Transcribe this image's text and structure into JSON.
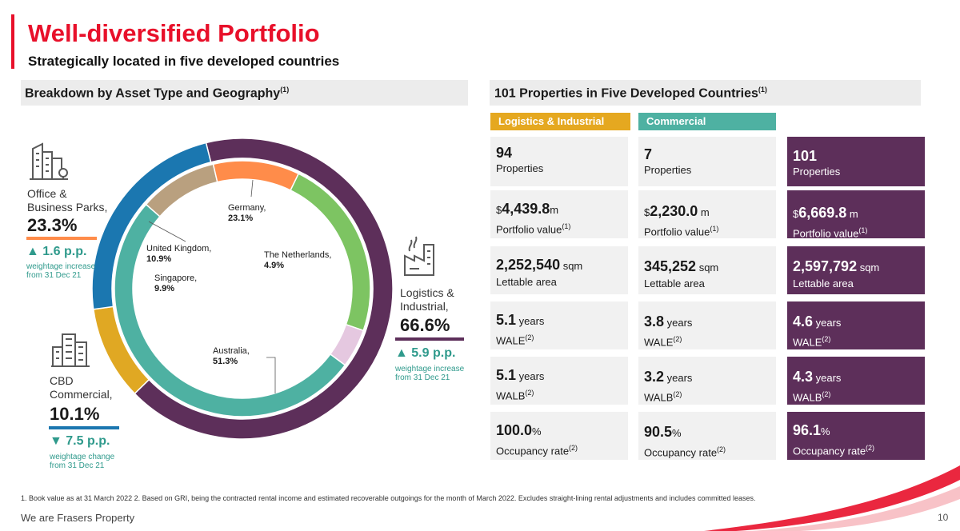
{
  "title": "Well-diversified Portfolio",
  "subtitle": "Strategically located in five developed countries",
  "left_section": {
    "heading": "Breakdown by Asset Type and Geography",
    "heading_sup": "(1)"
  },
  "right_section": {
    "heading": "101 Properties in Five Developed Countries",
    "heading_sup": "(1)"
  },
  "colors": {
    "brand_red": "#e8102a",
    "logistics": "#e5a820",
    "commercial": "#4eb1a2",
    "total": "#5d2f5a",
    "office_bar": "#ff8c4a",
    "cbd_bar": "#1b77b0",
    "delta_teal": "#2f9a8c"
  },
  "categories": {
    "office": {
      "icon": "office-building-icon",
      "name_line1": "Office &",
      "name_line2": "Business Parks,",
      "pct": "23.3%",
      "delta": "▲ 1.6 p.p.",
      "note_line1": "weightage increase",
      "note_line2": "from 31 Dec 21"
    },
    "cbd": {
      "icon": "city-buildings-icon",
      "name_line1": "CBD",
      "name_line2": "Commercial,",
      "pct": "10.1%",
      "delta": "▼ 7.5 p.p.",
      "note_line1": "weightage change",
      "note_line2": "from 31 Dec 21"
    },
    "logistics": {
      "icon": "factory-icon",
      "name_line1": "Logistics &",
      "name_line2": "Industrial,",
      "pct": "66.6%",
      "delta": "▲ 5.9 p.p.",
      "note_line1": "weightage increase",
      "note_line2": "from 31 Dec 21"
    }
  },
  "chart_data": {
    "type": "pie",
    "title": "",
    "series": [
      {
        "name": "Asset Type",
        "labels": [
          "Logistics & Industrial",
          "CBD Commercial",
          "Office & Business Parks"
        ],
        "values": [
          66.6,
          10.1,
          23.3
        ]
      },
      {
        "name": "Geography",
        "labels": [
          "Germany",
          "The Netherlands",
          "Australia",
          "Singapore",
          "United Kingdom"
        ],
        "values": [
          23.1,
          4.9,
          51.3,
          9.9,
          10.9
        ]
      }
    ]
  },
  "geo_labels": {
    "germany": {
      "name": "Germany,",
      "pct": "23.1%"
    },
    "netherlands": {
      "name": "The Netherlands,",
      "pct": "4.9%"
    },
    "australia": {
      "name": "Australia,",
      "pct": "51.3%"
    },
    "singapore": {
      "name": "Singapore,",
      "pct": "9.9%"
    },
    "uk": {
      "name": "United Kingdom,",
      "pct": "10.9%"
    }
  },
  "table": {
    "headers": {
      "logistics": "Logistics & Industrial",
      "commercial": "Commercial"
    },
    "rows": [
      {
        "logistics": {
          "value": "94",
          "label": "Properties"
        },
        "commercial": {
          "value": "7",
          "label": "Properties"
        },
        "total": {
          "value": "101",
          "label": "Properties"
        }
      },
      {
        "logistics": {
          "cur": "$",
          "value": "4,439.8",
          "unit": "m",
          "label": "Portfolio value",
          "sup": "(1)"
        },
        "commercial": {
          "cur": "$",
          "value": "2,230.0",
          "unit": " m",
          "label": "Portfolio value",
          "sup": "(1)"
        },
        "total": {
          "cur": "$",
          "value": "6,669.8",
          "unit": " m",
          "label": "Portfolio value",
          "sup": "(1)"
        }
      },
      {
        "logistics": {
          "value": "2,252,540",
          "unit": " sqm",
          "label": "Lettable area"
        },
        "commercial": {
          "value": "345,252",
          "unit": " sqm",
          "label": "Lettable area"
        },
        "total": {
          "value": "2,597,792",
          "unit": " sqm",
          "label": "Lettable area"
        }
      },
      {
        "logistics": {
          "value": "5.1",
          "unit": " years",
          "label": "WALE",
          "sup": "(2)"
        },
        "commercial": {
          "value": "3.8",
          "unit": " years",
          "label": "WALE",
          "sup": "(2)"
        },
        "total": {
          "value": "4.6",
          "unit": " years",
          "label": "WALE",
          "sup": "(2)"
        }
      },
      {
        "logistics": {
          "value": "5.1",
          "unit": " years",
          "label": "WALB",
          "sup": "(2)"
        },
        "commercial": {
          "value": "3.2",
          "unit": " years",
          "label": "WALB",
          "sup": "(2)"
        },
        "total": {
          "value": "4.3",
          "unit": " years",
          "label": "WALB",
          "sup": "(2)"
        }
      },
      {
        "logistics": {
          "value": "100.0",
          "unit": "%",
          "label": "Occupancy rate",
          "sup": "(2)"
        },
        "commercial": {
          "value": "90.5",
          "unit": "%",
          "label": "Occupancy rate",
          "sup": "(2)"
        },
        "total": {
          "value": "96.1",
          "unit": "%",
          "label": "Occupancy rate",
          "sup": "(2)"
        }
      }
    ]
  },
  "footnote": "1. Book value as at 31 March 2022   2. Based on GRI, being the contracted rental income and estimated recoverable outgoings for the month of March 2022. Excludes straight-lining rental adjustments and includes committed leases.",
  "tagline": "We are Frasers Property",
  "page_number": "10"
}
